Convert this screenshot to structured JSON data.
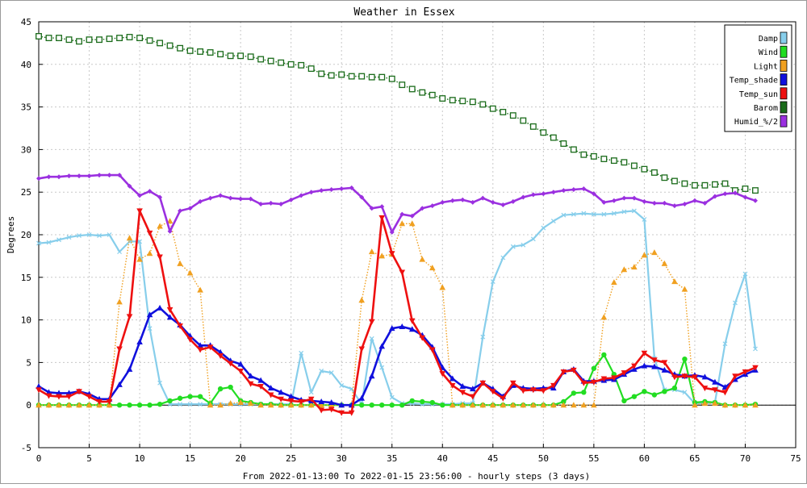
{
  "chart_data": {
    "type": "line",
    "title": "Weather in Essex",
    "xlabel": "From 2022-01-13:00 To 2022-01-15 23:56:00 - hourly steps (3 days)",
    "ylabel": "Degrees",
    "xlim": [
      0,
      75
    ],
    "ylim": [
      -5,
      45
    ],
    "x_ticks": [
      0,
      5,
      10,
      15,
      20,
      25,
      30,
      35,
      40,
      45,
      50,
      55,
      60,
      65,
      70,
      75
    ],
    "y_ticks": [
      -5,
      0,
      5,
      10,
      15,
      20,
      25,
      30,
      35,
      40,
      45
    ],
    "grid": true,
    "legend_position": "top-right",
    "series": [
      {
        "name": "Damp",
        "color": "#87ceeb",
        "marker": "x",
        "style": "solid",
        "values": [
          19.0,
          19.1,
          19.4,
          19.7,
          19.9,
          20.0,
          19.9,
          20.0,
          18.0,
          19.2,
          19.2,
          9.0,
          2.6,
          0.1,
          0.1,
          0.1,
          0.1,
          0.1,
          0.1,
          0.1,
          0.1,
          0.1,
          0.1,
          0.1,
          0.1,
          0.1,
          6.1,
          1.5,
          4.0,
          3.8,
          2.3,
          1.9,
          0.1,
          7.8,
          4.4,
          0.9,
          0.2,
          0.2,
          0.1,
          0.1,
          0.1,
          0.1,
          0.2,
          0.2,
          8.0,
          14.5,
          17.3,
          18.6,
          18.8,
          19.5,
          20.8,
          21.6,
          22.3,
          22.4,
          22.5,
          22.4,
          22.4,
          22.5,
          22.7,
          22.8,
          21.8,
          5.5,
          1.8,
          1.8,
          1.5,
          0.2,
          0.2,
          0.3,
          7.2,
          12.0,
          15.4,
          6.6
        ]
      },
      {
        "name": "Wind",
        "color": "#22dd22",
        "marker": "circle",
        "style": "solid",
        "values": [
          0,
          0,
          0,
          0,
          0,
          0,
          0,
          0,
          0,
          0,
          0,
          0,
          0.1,
          0.5,
          0.8,
          1.0,
          1.0,
          0.2,
          1.9,
          2.1,
          0.5,
          0.3,
          0.1,
          0.1,
          0,
          0,
          0,
          0,
          0,
          0,
          0,
          0,
          0,
          0,
          0,
          0,
          0,
          0.5,
          0.4,
          0.3,
          0,
          0,
          0,
          0,
          0,
          0,
          0,
          0,
          0,
          0,
          0,
          0,
          0.4,
          1.4,
          1.5,
          4.3,
          5.9,
          3.6,
          0.5,
          1.0,
          1.6,
          1.2,
          1.6,
          2.0,
          5.4,
          0.3,
          0.4,
          0.3,
          0,
          0,
          0,
          0.1
        ]
      },
      {
        "name": "Light",
        "color": "#f0a020",
        "marker": "triangle-up",
        "style": "dotted",
        "values": [
          0,
          0,
          0,
          0,
          0,
          0,
          0,
          0,
          12.1,
          19.6,
          17.1,
          17.8,
          21.0,
          21.6,
          16.6,
          15.5,
          13.5,
          0,
          0,
          0.2,
          0.3,
          0.2,
          0,
          0,
          0,
          0,
          0,
          0,
          0,
          0,
          0,
          0,
          12.3,
          18.0,
          17.5,
          17.7,
          21.3,
          21.3,
          17.1,
          16.1,
          13.8,
          0,
          0,
          0,
          0,
          0,
          0,
          0,
          0,
          0,
          0,
          0,
          0,
          0,
          0,
          0,
          10.3,
          14.4,
          15.9,
          16.2,
          17.6,
          17.9,
          16.6,
          14.5,
          13.6,
          0,
          0.2,
          0.2,
          0,
          0,
          0,
          0
        ]
      },
      {
        "name": "Temp_shade",
        "color": "#1010dd",
        "marker": "triangle-up",
        "style": "solid",
        "values": [
          2.2,
          1.5,
          1.4,
          1.4,
          1.6,
          1.3,
          0.7,
          0.7,
          2.4,
          4.2,
          7.4,
          10.6,
          11.4,
          10.3,
          9.4,
          8.1,
          7.0,
          7.0,
          6.2,
          5.2,
          4.8,
          3.4,
          2.9,
          2.0,
          1.5,
          1.0,
          0.6,
          0.5,
          0.4,
          0.3,
          0.0,
          0.0,
          0.8,
          3.4,
          6.9,
          9.0,
          9.2,
          8.9,
          8.2,
          6.8,
          4.4,
          3.1,
          2.2,
          1.9,
          2.6,
          1.9,
          1.0,
          2.3,
          2.0,
          1.9,
          2.0,
          2.0,
          3.9,
          4.2,
          2.8,
          2.8,
          2.9,
          3.0,
          3.6,
          4.2,
          4.6,
          4.5,
          4.1,
          3.6,
          3.4,
          3.5,
          3.3,
          2.7,
          2.1,
          3.0,
          3.6,
          4.1
        ]
      },
      {
        "name": "Temp_sun",
        "color": "#ee1010",
        "marker": "triangle-down",
        "style": "solid",
        "values": [
          1.8,
          1.1,
          1.0,
          1.0,
          1.6,
          1.0,
          0.4,
          0.4,
          6.6,
          10.4,
          22.8,
          20.2,
          17.4,
          11.2,
          9.3,
          7.7,
          6.5,
          6.8,
          5.8,
          4.9,
          4.0,
          2.5,
          2.2,
          1.2,
          0.7,
          0.5,
          0.4,
          0.7,
          -0.6,
          -0.5,
          -0.9,
          -0.9,
          6.6,
          9.8,
          22.0,
          17.8,
          15.6,
          9.9,
          7.9,
          6.5,
          3.7,
          2.3,
          1.5,
          1.0,
          2.6,
          1.6,
          0.8,
          2.6,
          1.7,
          1.8,
          1.7,
          2.3,
          3.9,
          4.1,
          2.6,
          2.7,
          3.1,
          3.2,
          3.8,
          4.6,
          6.1,
          5.3,
          5.0,
          3.3,
          3.4,
          3.3,
          2.0,
          1.8,
          1.5,
          3.4,
          3.9,
          4.4
        ]
      },
      {
        "name": "Barom",
        "color": "#1a6b1a",
        "marker": "square",
        "style": "dotted",
        "values": [
          43.3,
          43.1,
          43.1,
          42.9,
          42.7,
          42.9,
          42.9,
          43.0,
          43.1,
          43.2,
          43.1,
          42.8,
          42.5,
          42.2,
          41.9,
          41.6,
          41.5,
          41.4,
          41.2,
          41.0,
          41.0,
          40.9,
          40.6,
          40.4,
          40.2,
          40.0,
          39.9,
          39.5,
          38.9,
          38.7,
          38.8,
          38.6,
          38.6,
          38.5,
          38.5,
          38.3,
          37.6,
          37.1,
          36.7,
          36.4,
          36.0,
          35.8,
          35.7,
          35.6,
          35.3,
          34.8,
          34.4,
          34.0,
          33.4,
          32.7,
          32.0,
          31.4,
          30.7,
          30.0,
          29.4,
          29.2,
          28.9,
          28.7,
          28.5,
          28.1,
          27.7,
          27.3,
          26.7,
          26.3,
          26.0,
          25.8,
          25.8,
          25.9,
          26.0,
          25.2,
          25.4,
          25.2
        ]
      },
      {
        "name": "Humid_%/2",
        "color": "#9b30e0",
        "marker": "diamond",
        "style": "solid",
        "values": [
          26.6,
          26.8,
          26.8,
          26.9,
          26.9,
          26.9,
          27.0,
          27.0,
          27.0,
          25.7,
          24.6,
          25.1,
          24.4,
          20.4,
          22.8,
          23.1,
          23.9,
          24.3,
          24.6,
          24.3,
          24.2,
          24.2,
          23.6,
          23.7,
          23.6,
          24.1,
          24.6,
          25.0,
          25.2,
          25.3,
          25.4,
          25.5,
          24.4,
          23.1,
          23.3,
          20.3,
          22.4,
          22.2,
          23.1,
          23.4,
          23.8,
          24.0,
          24.1,
          23.8,
          24.3,
          23.8,
          23.5,
          23.9,
          24.4,
          24.7,
          24.8,
          25.0,
          25.2,
          25.3,
          25.4,
          24.8,
          23.8,
          24.0,
          24.3,
          24.3,
          23.9,
          23.7,
          23.7,
          23.4,
          23.6,
          24.0,
          23.7,
          24.5,
          24.8,
          24.9,
          24.4,
          24.0
        ]
      }
    ]
  }
}
